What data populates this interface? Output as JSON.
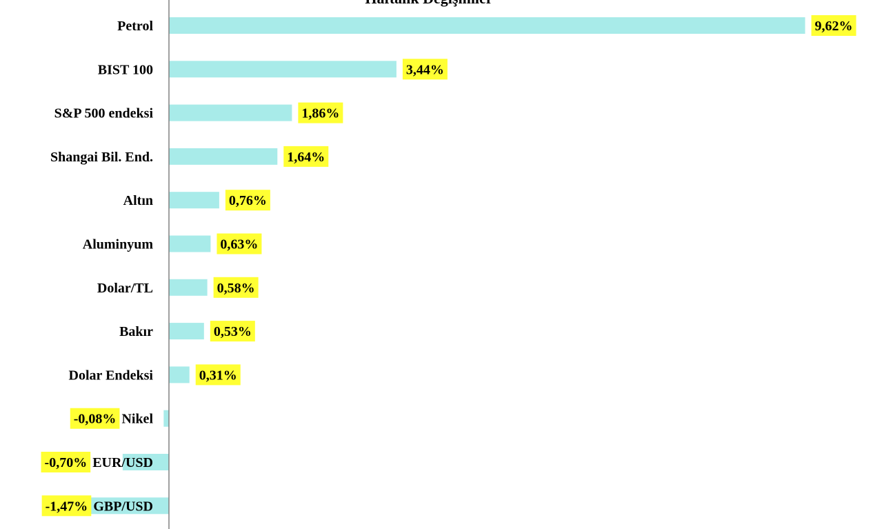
{
  "chart_data": {
    "type": "bar",
    "orientation": "horizontal",
    "title": "Haftalık Değişimler",
    "categories": [
      "Petrol",
      "BIST 100",
      "S&P 500 endeksi",
      "Shangai Bil. End.",
      "Altın",
      "Aluminyum",
      "Dolar/TL",
      "Bakır",
      "Dolar Endeksi",
      "Nikel",
      "EUR/USD",
      "GBP/USD"
    ],
    "values": [
      9.62,
      3.44,
      1.86,
      1.64,
      0.76,
      0.63,
      0.58,
      0.53,
      0.31,
      -0.08,
      -0.7,
      -1.47
    ],
    "value_labels": [
      "9,62%",
      "3,44%",
      "1,86%",
      "1,64%",
      "0,76%",
      "0,63%",
      "0,58%",
      "0,53%",
      "0,31%",
      "-0,08%",
      "-0,70%",
      "-1,47%"
    ],
    "xlim": [
      -1.47,
      9.62
    ],
    "grid": false,
    "legend": "none",
    "colors": {
      "bar": "#a8ebe9",
      "label_highlight": "#ffff33",
      "axis": "#808080"
    }
  }
}
